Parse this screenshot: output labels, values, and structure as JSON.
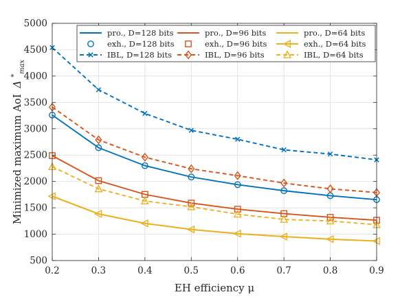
{
  "chart_data": {
    "type": "line",
    "xlabel": "EH efficiency μ",
    "ylabel": "Minimized maximum AoI",
    "ylabel_symbol": "Δ",
    "ylabel_superscript": "*",
    "ylabel_subscript": "max",
    "xlim": [
      0.2,
      0.9
    ],
    "ylim": [
      500,
      5000
    ],
    "xticks": [
      "0.2",
      "0.3",
      "0.4",
      "0.5",
      "0.6",
      "0.7",
      "0.8",
      "0.9"
    ],
    "yticks": [
      "500",
      "1000",
      "1500",
      "2000",
      "2500",
      "3000",
      "3500",
      "4000",
      "4500",
      "5000"
    ],
    "grid": true,
    "legend_position": "top-right",
    "colors": {
      "blue": "#0072BD",
      "orange": "#D95319",
      "yellow": "#EDB120"
    },
    "x": [
      0.2,
      0.3,
      0.4,
      0.5,
      0.6,
      0.7,
      0.8,
      0.9
    ],
    "series": [
      {
        "name": "pro., D=128 bits",
        "color": "#0072BD",
        "dash": "solid",
        "marker": "none",
        "values": [
          3260,
          2640,
          2300,
          2085,
          1940,
          1825,
          1730,
          1655
        ]
      },
      {
        "name": "pro., D=96 bits",
        "color": "#D95319",
        "dash": "solid",
        "marker": "none",
        "values": [
          2490,
          2015,
          1755,
          1590,
          1475,
          1390,
          1320,
          1265
        ]
      },
      {
        "name": "pro., D=64 bits",
        "color": "#EDB120",
        "dash": "solid",
        "marker": "none",
        "values": [
          1720,
          1385,
          1205,
          1090,
          1010,
          955,
          905,
          870
        ]
      },
      {
        "name": "exh., D=128 bits",
        "color": "#0072BD",
        "dash": "none",
        "marker": "circle",
        "values": [
          3260,
          2640,
          2300,
          2085,
          1940,
          1825,
          1730,
          1655
        ]
      },
      {
        "name": "exh., D=96 bits",
        "color": "#D95319",
        "dash": "none",
        "marker": "square",
        "values": [
          2490,
          2015,
          1755,
          1590,
          1475,
          1390,
          1320,
          1265
        ]
      },
      {
        "name": "exh., D=64 bits",
        "color": "#EDB120",
        "dash": "solid",
        "marker": "triangle-left",
        "values": [
          1720,
          1385,
          1205,
          1090,
          1010,
          955,
          905,
          870
        ]
      },
      {
        "name": "IBL, D=128 bits",
        "color": "#0072BD",
        "dash": "dashed",
        "marker": "x",
        "values": [
          4540,
          3740,
          3290,
          2970,
          2800,
          2600,
          2520,
          2410
        ]
      },
      {
        "name": "IBL, D=96 bits",
        "color": "#D95319",
        "dash": "dashed",
        "marker": "diamond",
        "values": [
          3410,
          2790,
          2460,
          2240,
          2110,
          1970,
          1860,
          1790
        ]
      },
      {
        "name": "IBL, D=64 bits",
        "color": "#EDB120",
        "dash": "dashed",
        "marker": "triangle-up",
        "values": [
          2280,
          1860,
          1630,
          1520,
          1380,
          1280,
          1250,
          1180
        ]
      }
    ],
    "legend_order": [
      0,
      1,
      2,
      3,
      4,
      5,
      6,
      7,
      8
    ]
  }
}
